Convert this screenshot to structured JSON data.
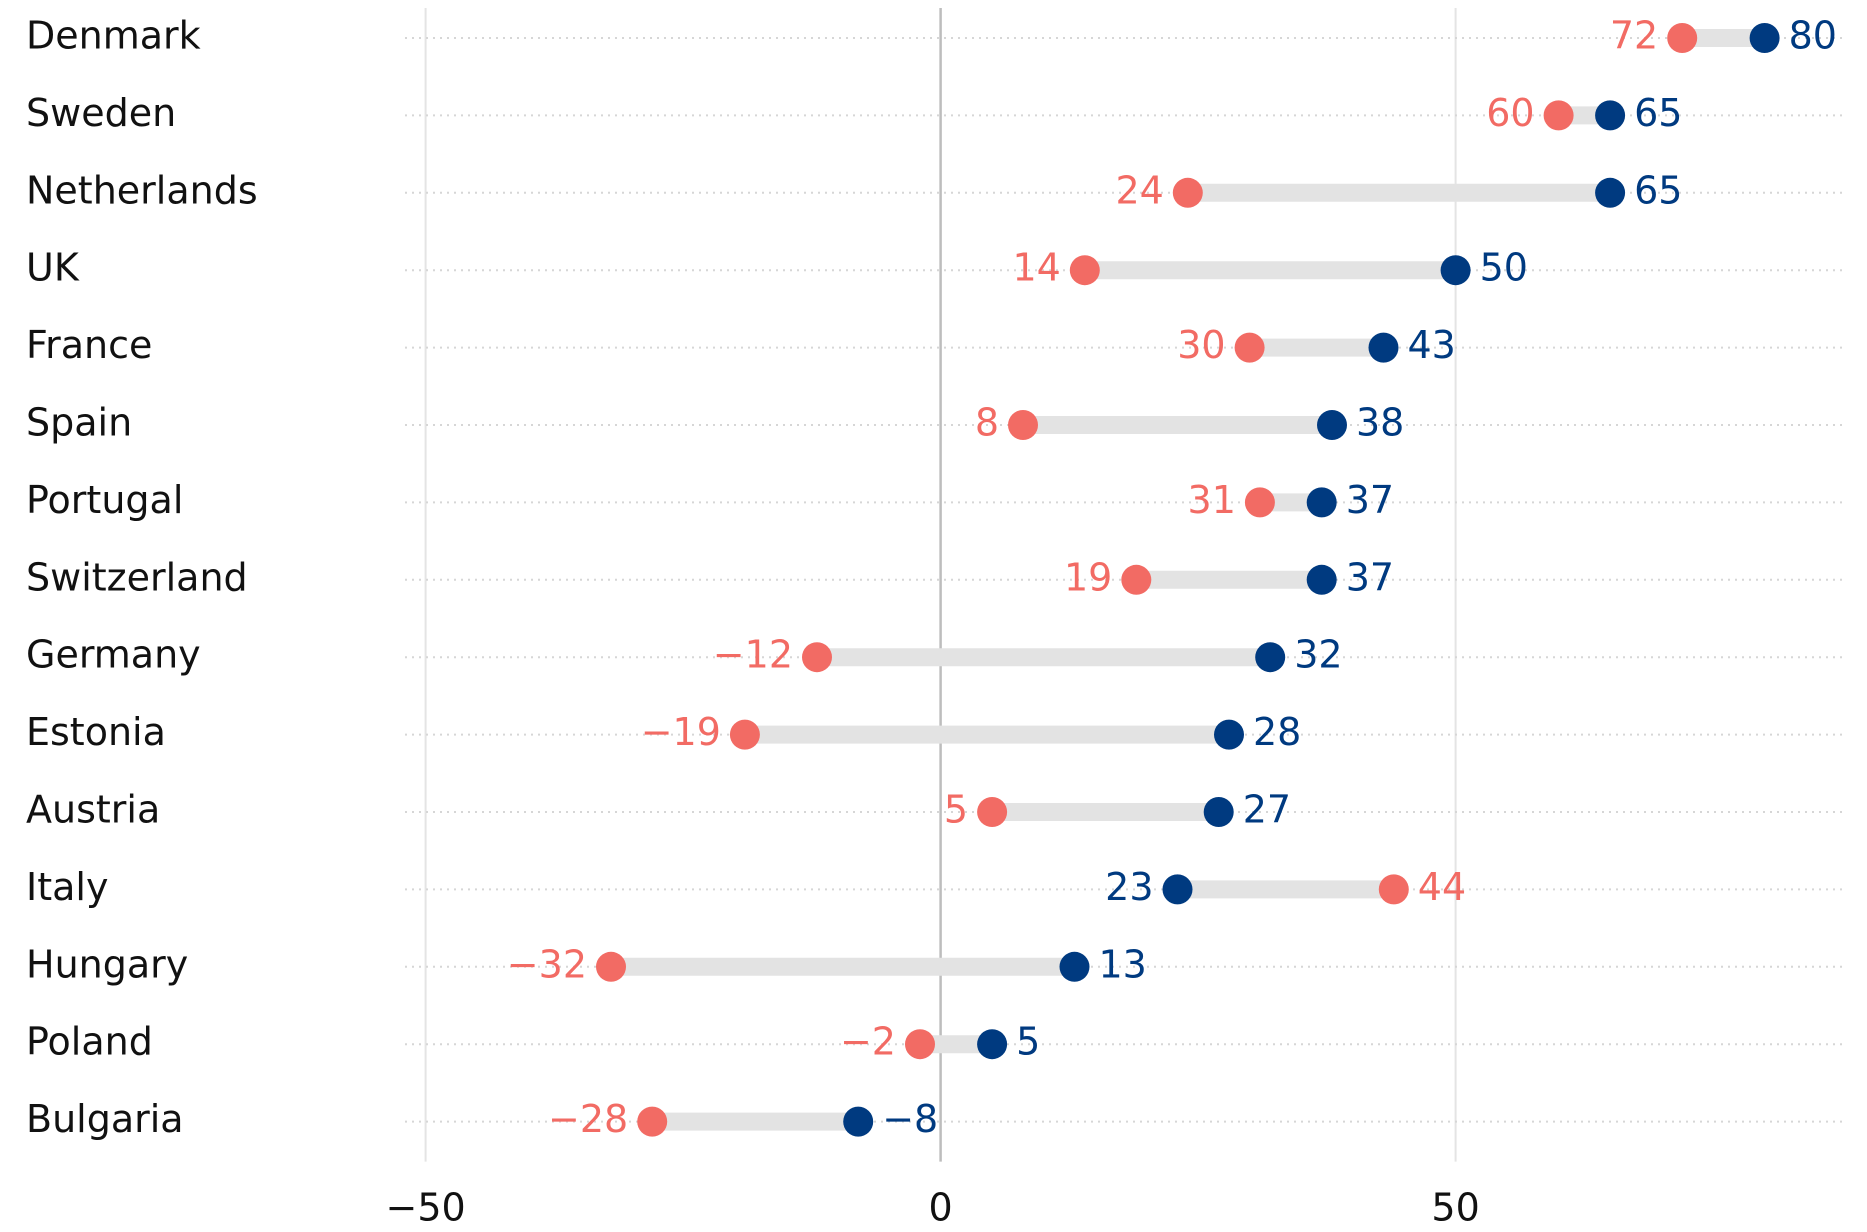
{
  "chart_data": {
    "type": "dumbbell",
    "categories": [
      "Denmark",
      "Sweden",
      "Netherlands",
      "UK",
      "France",
      "Spain",
      "Portugal",
      "Switzerland",
      "Germany",
      "Estonia",
      "Austria",
      "Italy",
      "Hungary",
      "Poland",
      "Bulgaria"
    ],
    "series": [
      {
        "color": "#f26b64",
        "values": [
          72,
          60,
          24,
          14,
          30,
          8,
          31,
          19,
          -12,
          -19,
          5,
          44,
          -32,
          -2,
          -28
        ],
        "value_labels": [
          "72",
          "60",
          "24",
          "14",
          "30",
          "8",
          "31",
          "19",
          "−12",
          "−19",
          "5",
          "44",
          "−32",
          "−2",
          "−28"
        ]
      },
      {
        "color": "#003a80",
        "values": [
          80,
          65,
          65,
          50,
          43,
          38,
          37,
          37,
          32,
          28,
          27,
          23,
          13,
          5,
          -8
        ],
        "value_labels": [
          "80",
          "65",
          "65",
          "50",
          "43",
          "38",
          "37",
          "37",
          "32",
          "28",
          "27",
          "23",
          "13",
          "5",
          "−8"
        ]
      }
    ],
    "xlim": [
      -52,
      88
    ],
    "xticks": [
      {
        "value": -50,
        "label": "−50"
      },
      0,
      50
    ],
    "grid": true
  }
}
